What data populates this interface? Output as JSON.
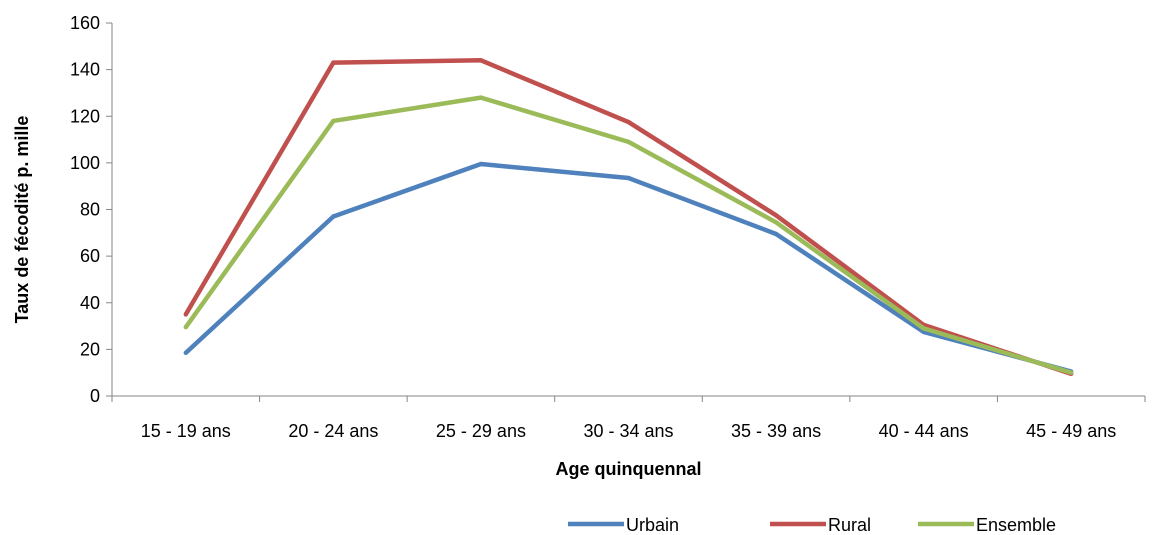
{
  "chart_data": {
    "type": "line",
    "categories": [
      "15 - 19 ans",
      "20 - 24 ans",
      "25 - 29 ans",
      "30 - 34 ans",
      "35 - 39 ans",
      "40 - 44 ans",
      "45 - 49 ans"
    ],
    "series": [
      {
        "name": "Urbain",
        "color": "#4F81BD",
        "values": [
          18.5,
          77,
          99.5,
          93.5,
          69.5,
          27.5,
          10.5
        ]
      },
      {
        "name": "Rural",
        "color": "#C0504D",
        "values": [
          35,
          143,
          144,
          117.5,
          77.5,
          30.5,
          9.5
        ]
      },
      {
        "name": "Ensemble",
        "color": "#9BBB59",
        "values": [
          29.5,
          118,
          128,
          109,
          74.5,
          29,
          10
        ]
      }
    ],
    "title": "",
    "xlabel": "Age quinquennal",
    "ylabel": "Taux de fécodité p. mille",
    "ylim": [
      0,
      160
    ],
    "yticks": [
      0,
      20,
      40,
      60,
      80,
      100,
      120,
      140,
      160
    ],
    "grid": false,
    "legend_position": "bottom-right"
  }
}
